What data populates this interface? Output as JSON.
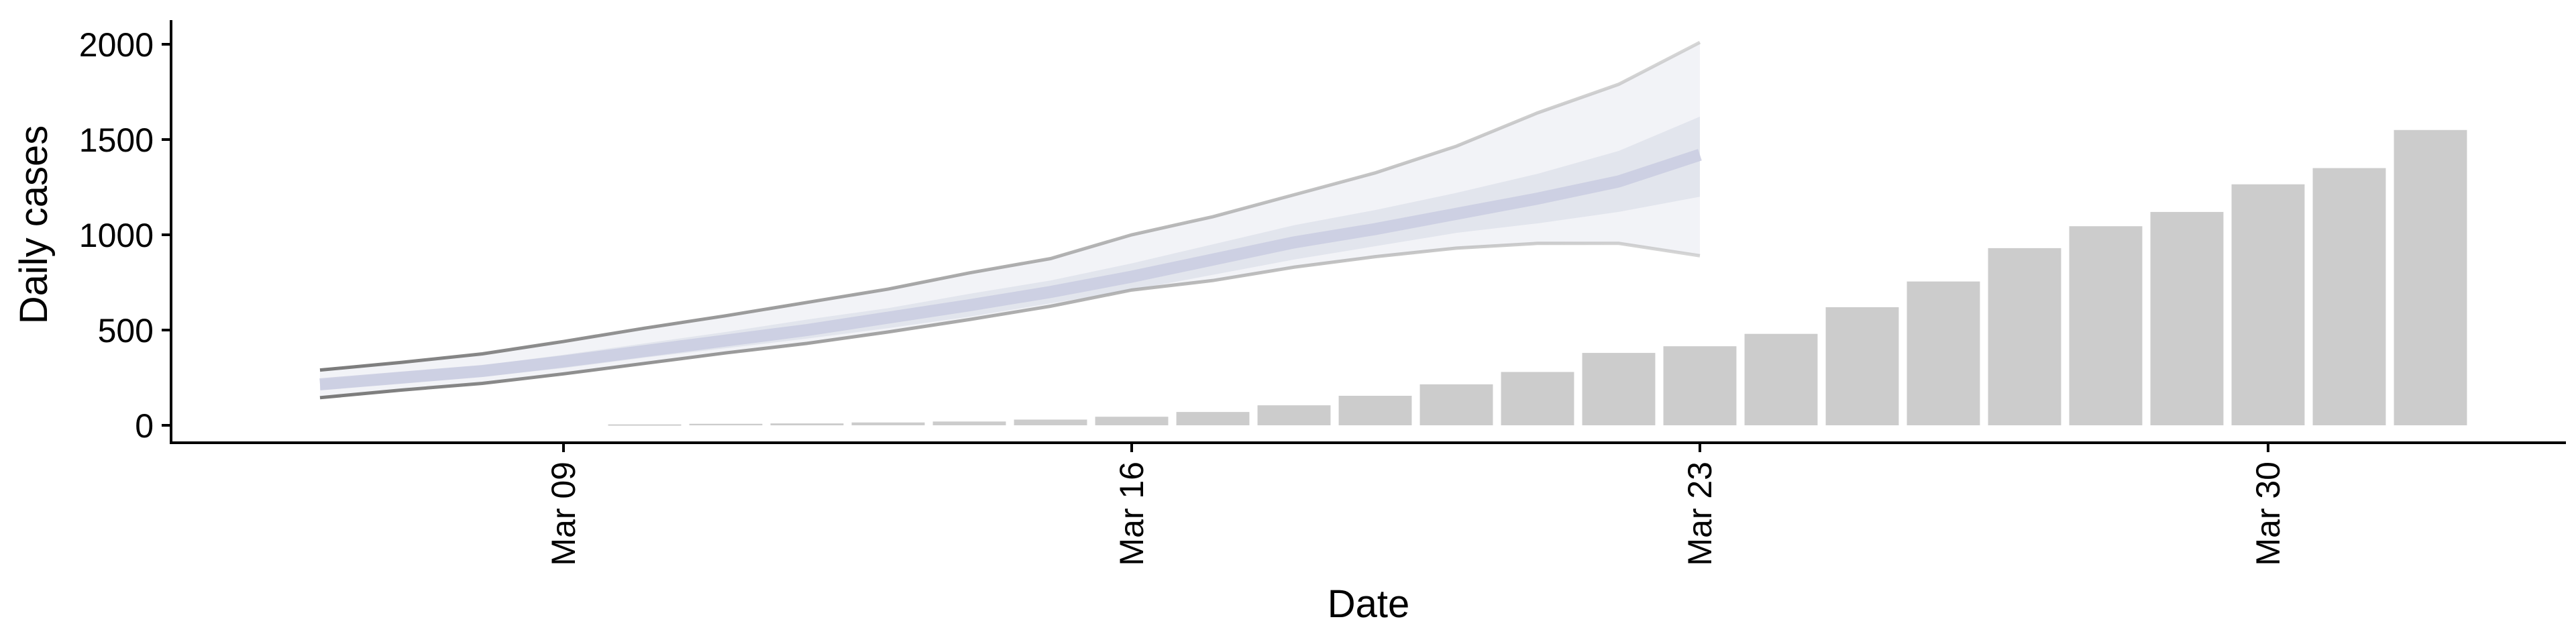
{
  "chart_data": {
    "type": "bar",
    "xlabel": "Date",
    "ylabel": "Daily cases",
    "ylim": [
      0,
      2000
    ],
    "yticks": [
      0,
      500,
      1000,
      1500,
      2000
    ],
    "xtick_labels": [
      "Mar 09",
      "Mar 16",
      "Mar 23",
      "Mar 30"
    ],
    "grid": false,
    "legend": "none",
    "bars": {
      "name": "",
      "color": "#cccccc",
      "x": [
        "2020-03-10",
        "2020-03-11",
        "2020-03-12",
        "2020-03-13",
        "2020-03-14",
        "2020-03-15",
        "2020-03-16",
        "2020-03-17",
        "2020-03-18",
        "2020-03-19",
        "2020-03-20",
        "2020-03-21",
        "2020-03-22",
        "2020-03-23",
        "2020-03-24",
        "2020-03-25",
        "2020-03-26",
        "2020-03-27",
        "2020-03-28",
        "2020-03-29",
        "2020-03-30",
        "2020-03-31",
        "2020-04-01",
        "2020-04-02"
      ],
      "values": [
        5,
        8,
        10,
        15,
        20,
        30,
        45,
        70,
        105,
        155,
        215,
        280,
        380,
        415,
        480,
        620,
        755,
        930,
        1045,
        1120,
        1265,
        1350,
        1550,
        0
      ]
    },
    "forecast": {
      "x": [
        "2020-03-06",
        "2020-03-07",
        "2020-03-08",
        "2020-03-09",
        "2020-03-10",
        "2020-03-11",
        "2020-03-12",
        "2020-03-13",
        "2020-03-14",
        "2020-03-15",
        "2020-03-16",
        "2020-03-17",
        "2020-03-18",
        "2020-03-19",
        "2020-03-20",
        "2020-03-21",
        "2020-03-22",
        "2020-03-23"
      ],
      "outer_upper": [
        290,
        330,
        375,
        440,
        510,
        575,
        645,
        715,
        800,
        875,
        1000,
        1095,
        1210,
        1325,
        1465,
        1640,
        1790,
        2010
      ],
      "inner_upper": [
        240,
        280,
        315,
        370,
        430,
        490,
        555,
        615,
        690,
        760,
        850,
        950,
        1050,
        1130,
        1220,
        1320,
        1440,
        1620
      ],
      "median": [
        215,
        250,
        285,
        335,
        390,
        445,
        500,
        565,
        630,
        700,
        780,
        870,
        960,
        1030,
        1110,
        1190,
        1280,
        1420
      ],
      "inner_lower": [
        185,
        220,
        255,
        300,
        355,
        405,
        455,
        510,
        570,
        640,
        710,
        790,
        870,
        940,
        1010,
        1060,
        1120,
        1200
      ],
      "outer_lower": [
        145,
        185,
        220,
        270,
        325,
        380,
        430,
        490,
        555,
        625,
        710,
        760,
        830,
        885,
        930,
        955,
        955,
        890
      ],
      "outer_color": "#e8e9f0",
      "inner_color": "#d5d8e6",
      "median_color": "#c8cbe0",
      "line_color": "#888888"
    }
  }
}
